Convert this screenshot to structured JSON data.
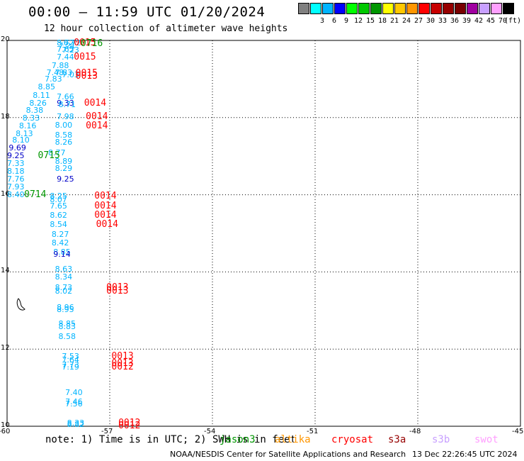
{
  "header": {
    "title": "00:00 — 11:59 UTC 01/20/2024",
    "subtitle": "12 hour collection of altimeter wave heights"
  },
  "colorbar": {
    "unit": "(ft)",
    "bins": [
      {
        "label": "",
        "color": "#808080"
      },
      {
        "label": "3",
        "color": "#00ffff"
      },
      {
        "label": "6",
        "color": "#00b4ff"
      },
      {
        "label": "9",
        "color": "#0000ff"
      },
      {
        "label": "12",
        "color": "#00ff00"
      },
      {
        "label": "15",
        "color": "#00c800"
      },
      {
        "label": "18",
        "color": "#009600"
      },
      {
        "label": "21",
        "color": "#ffff00"
      },
      {
        "label": "24",
        "color": "#ffc800"
      },
      {
        "label": "27",
        "color": "#ff9600"
      },
      {
        "label": "30",
        "color": "#ff0000"
      },
      {
        "label": "33",
        "color": "#c80000"
      },
      {
        "label": "36",
        "color": "#960000"
      },
      {
        "label": "39",
        "color": "#780000"
      },
      {
        "label": "42",
        "color": "#a000a0"
      },
      {
        "label": "45",
        "color": "#c8a0ff"
      },
      {
        "label": "70",
        "color": "#ffa0ff"
      },
      {
        "label": "",
        "color": "#000000"
      }
    ]
  },
  "map": {
    "lon_range": [
      -60,
      -45
    ],
    "lat_range": [
      10,
      20
    ],
    "lon_ticks": [
      "-60",
      "-57",
      "-54",
      "-51",
      "-48",
      "-45"
    ],
    "lat_ticks": [
      "20",
      "18",
      "16",
      "14",
      "12",
      "10"
    ],
    "observations": [
      {
        "lon": -58.55,
        "lat": 19.95,
        "text": "8.72",
        "color": "#00b4ff"
      },
      {
        "lon": -58.5,
        "lat": 19.88,
        "text": "7.21",
        "color": "#00b4ff"
      },
      {
        "lon": -58.35,
        "lat": 19.95,
        "text": "6.72",
        "color": "#00b4ff"
      },
      {
        "lon": -58.55,
        "lat": 19.78,
        "text": "7.65",
        "color": "#00b4ff"
      },
      {
        "lon": -58.4,
        "lat": 19.76,
        "text": "7.23",
        "color": "#00b4ff"
      },
      {
        "lon": -58.55,
        "lat": 19.58,
        "text": "7.44",
        "color": "#00b4ff"
      },
      {
        "lon": -58.7,
        "lat": 19.36,
        "text": "7.88",
        "color": "#00b4ff"
      },
      {
        "lon": -58.85,
        "lat": 19.18,
        "text": "7.48",
        "color": "#00b4ff"
      },
      {
        "lon": -58.6,
        "lat": 19.18,
        "text": "7.83",
        "color": "#00b4ff"
      },
      {
        "lon": -58.4,
        "lat": 19.12,
        "text": "7.03",
        "color": "#00b4ff"
      },
      {
        "lon": -58.9,
        "lat": 19.0,
        "text": "7.83",
        "color": "#00b4ff"
      },
      {
        "lon": -59.1,
        "lat": 18.8,
        "text": "8.85",
        "color": "#00b4ff"
      },
      {
        "lon": -59.25,
        "lat": 18.58,
        "text": "8.11",
        "color": "#00b4ff"
      },
      {
        "lon": -58.55,
        "lat": 18.55,
        "text": "7.66",
        "color": "#00b4ff"
      },
      {
        "lon": -59.35,
        "lat": 18.38,
        "text": "8.26",
        "color": "#00b4ff"
      },
      {
        "lon": -58.55,
        "lat": 18.38,
        "text": "9.33",
        "color": "#0000c8"
      },
      {
        "lon": -58.5,
        "lat": 18.34,
        "text": "8.71",
        "color": "#00b4ff"
      },
      {
        "lon": -59.45,
        "lat": 18.2,
        "text": "8.38",
        "color": "#00b4ff"
      },
      {
        "lon": -59.55,
        "lat": 18.0,
        "text": "8.33",
        "color": "#00b4ff"
      },
      {
        "lon": -58.55,
        "lat": 18.04,
        "text": "7.98",
        "color": "#00b4ff"
      },
      {
        "lon": -59.65,
        "lat": 17.8,
        "text": "8.16",
        "color": "#00b4ff"
      },
      {
        "lon": -58.6,
        "lat": 17.82,
        "text": "8.00",
        "color": "#00b4ff"
      },
      {
        "lon": -59.75,
        "lat": 17.6,
        "text": "8.13",
        "color": "#00b4ff"
      },
      {
        "lon": -58.6,
        "lat": 17.56,
        "text": "8.58",
        "color": "#00b4ff"
      },
      {
        "lon": -59.85,
        "lat": 17.42,
        "text": "8.10",
        "color": "#00b4ff"
      },
      {
        "lon": -58.6,
        "lat": 17.38,
        "text": "8.26",
        "color": "#00b4ff"
      },
      {
        "lon": -59.95,
        "lat": 17.22,
        "text": "9.69",
        "color": "#0000c8"
      },
      {
        "lon": -58.8,
        "lat": 17.1,
        "text": "8.77",
        "color": "#00b4ff"
      },
      {
        "lon": -60.05,
        "lat": 17.02,
        "text": "9.25",
        "color": "#0000c8"
      },
      {
        "lon": -58.6,
        "lat": 16.88,
        "text": "8.89",
        "color": "#00b4ff"
      },
      {
        "lon": -60.15,
        "lat": 16.82,
        "text": "7.33",
        "color": "#00b4ff"
      },
      {
        "lon": -58.6,
        "lat": 16.7,
        "text": "8.29",
        "color": "#00b4ff"
      },
      {
        "lon": -60.25,
        "lat": 16.62,
        "text": "8.18",
        "color": "#00b4ff"
      },
      {
        "lon": -60.35,
        "lat": 16.42,
        "text": "7.76",
        "color": "#00b4ff"
      },
      {
        "lon": -58.55,
        "lat": 16.42,
        "text": "9.25",
        "color": "#0000c8"
      },
      {
        "lon": -60.45,
        "lat": 16.22,
        "text": "7.93",
        "color": "#00b4ff"
      },
      {
        "lon": -60.55,
        "lat": 16.02,
        "text": "8.40",
        "color": "#00b4ff"
      },
      {
        "lon": -58.75,
        "lat": 15.98,
        "text": "8.25",
        "color": "#00b4ff"
      },
      {
        "lon": -58.75,
        "lat": 15.88,
        "text": "8.07",
        "color": "#00b4ff"
      },
      {
        "lon": -58.75,
        "lat": 15.72,
        "text": "7.65",
        "color": "#00b4ff"
      },
      {
        "lon": -58.75,
        "lat": 15.48,
        "text": "8.62",
        "color": "#00b4ff"
      },
      {
        "lon": -58.75,
        "lat": 15.24,
        "text": "8.54",
        "color": "#00b4ff"
      },
      {
        "lon": -58.7,
        "lat": 14.98,
        "text": "8.27",
        "color": "#00b4ff"
      },
      {
        "lon": -58.7,
        "lat": 14.76,
        "text": "8.42",
        "color": "#00b4ff"
      },
      {
        "lon": -58.65,
        "lat": 14.52,
        "text": "8.85",
        "color": "#00b4ff"
      },
      {
        "lon": -58.65,
        "lat": 14.46,
        "text": "9.14",
        "color": "#0000c8"
      },
      {
        "lon": -58.6,
        "lat": 14.08,
        "text": "8.63",
        "color": "#00b4ff"
      },
      {
        "lon": -58.6,
        "lat": 13.88,
        "text": "8.34",
        "color": "#00b4ff"
      },
      {
        "lon": -58.6,
        "lat": 13.6,
        "text": "8.73",
        "color": "#00b4ff"
      },
      {
        "lon": -58.6,
        "lat": 13.52,
        "text": "8.02",
        "color": "#00b4ff"
      },
      {
        "lon": -58.55,
        "lat": 13.08,
        "text": "8.96",
        "color": "#00b4ff"
      },
      {
        "lon": -58.55,
        "lat": 13.04,
        "text": "8.95",
        "color": "#00b4ff"
      },
      {
        "lon": -58.5,
        "lat": 12.66,
        "text": "8.85",
        "color": "#00b4ff"
      },
      {
        "lon": -58.5,
        "lat": 12.6,
        "text": "8.83",
        "color": "#00b4ff"
      },
      {
        "lon": -58.5,
        "lat": 12.34,
        "text": "8.58",
        "color": "#00b4ff"
      },
      {
        "lon": -58.4,
        "lat": 11.82,
        "text": "7.53",
        "color": "#00b4ff"
      },
      {
        "lon": -58.4,
        "lat": 11.72,
        "text": "7.64",
        "color": "#00b4ff"
      },
      {
        "lon": -58.4,
        "lat": 11.6,
        "text": "7.73",
        "color": "#00b4ff"
      },
      {
        "lon": -58.4,
        "lat": 11.54,
        "text": "7.19",
        "color": "#00b4ff"
      },
      {
        "lon": -58.3,
        "lat": 10.88,
        "text": "7.40",
        "color": "#00b4ff"
      },
      {
        "lon": -58.3,
        "lat": 10.64,
        "text": "7.46",
        "color": "#00b4ff"
      },
      {
        "lon": -58.3,
        "lat": 10.58,
        "text": "7.56",
        "color": "#00b4ff"
      },
      {
        "lon": -58.25,
        "lat": 10.1,
        "text": "8.33",
        "color": "#00b4ff"
      },
      {
        "lon": -58.25,
        "lat": 10.06,
        "text": "8.82",
        "color": "#00b4ff"
      }
    ],
    "orbit_labels": [
      {
        "lon": -58.05,
        "lat": 19.95,
        "text": "0015",
        "color": "#ff0000"
      },
      {
        "lon": -57.85,
        "lat": 19.92,
        "text": "0716",
        "color": "#009600"
      },
      {
        "lon": -58.05,
        "lat": 19.58,
        "text": "0015",
        "color": "#ff0000"
      },
      {
        "lon": -58.0,
        "lat": 19.16,
        "text": "0015",
        "color": "#ff0000"
      },
      {
        "lon": -58.0,
        "lat": 19.09,
        "text": "0013",
        "color": "#ff0000"
      },
      {
        "lon": -57.75,
        "lat": 18.38,
        "text": "0014",
        "color": "#ff0000"
      },
      {
        "lon": -57.7,
        "lat": 18.04,
        "text": "0014",
        "color": "#ff0000"
      },
      {
        "lon": -57.7,
        "lat": 17.8,
        "text": "0014",
        "color": "#ff0000"
      },
      {
        "lon": -59.1,
        "lat": 17.02,
        "text": "0715",
        "color": "#009600"
      },
      {
        "lon": -59.5,
        "lat": 16.02,
        "text": "0714",
        "color": "#009600"
      },
      {
        "lon": -57.45,
        "lat": 15.98,
        "text": "0014",
        "color": "#ff0000"
      },
      {
        "lon": -57.45,
        "lat": 15.72,
        "text": "0014",
        "color": "#ff0000"
      },
      {
        "lon": -57.45,
        "lat": 15.48,
        "text": "0014",
        "color": "#ff0000"
      },
      {
        "lon": -57.4,
        "lat": 15.24,
        "text": "0014",
        "color": "#ff0000"
      },
      {
        "lon": -57.1,
        "lat": 13.6,
        "text": "0013",
        "color": "#ff0000"
      },
      {
        "lon": -57.1,
        "lat": 13.52,
        "text": "0013",
        "color": "#ff0000"
      },
      {
        "lon": -56.95,
        "lat": 11.82,
        "text": "0013",
        "color": "#ff0000"
      },
      {
        "lon": -56.95,
        "lat": 11.64,
        "text": "0013",
        "color": "#ff0000"
      },
      {
        "lon": -56.95,
        "lat": 11.54,
        "text": "0012",
        "color": "#ff0000"
      },
      {
        "lon": -56.75,
        "lat": 10.1,
        "text": "0012",
        "color": "#ff0000"
      },
      {
        "lon": -56.75,
        "lat": 10.02,
        "text": "0012",
        "color": "#ff0000"
      }
    ]
  },
  "footer": {
    "note": "note: 1) Time is in UTC; 2) SWH is in feet",
    "satellites": [
      {
        "name": "jason3",
        "color": "#009600"
      },
      {
        "name": "altika",
        "color": "#ff9600"
      },
      {
        "name": "cryosat",
        "color": "#ff0000"
      },
      {
        "name": "s3a",
        "color": "#960000"
      },
      {
        "name": "s3b",
        "color": "#c8a0ff"
      },
      {
        "name": "swot",
        "color": "#ffa0ff"
      }
    ],
    "credit": "NOAA/NESDIS Center for Satellite Applications and Research",
    "stamp": "13 Dec 22:26:45 UTC 2024"
  }
}
